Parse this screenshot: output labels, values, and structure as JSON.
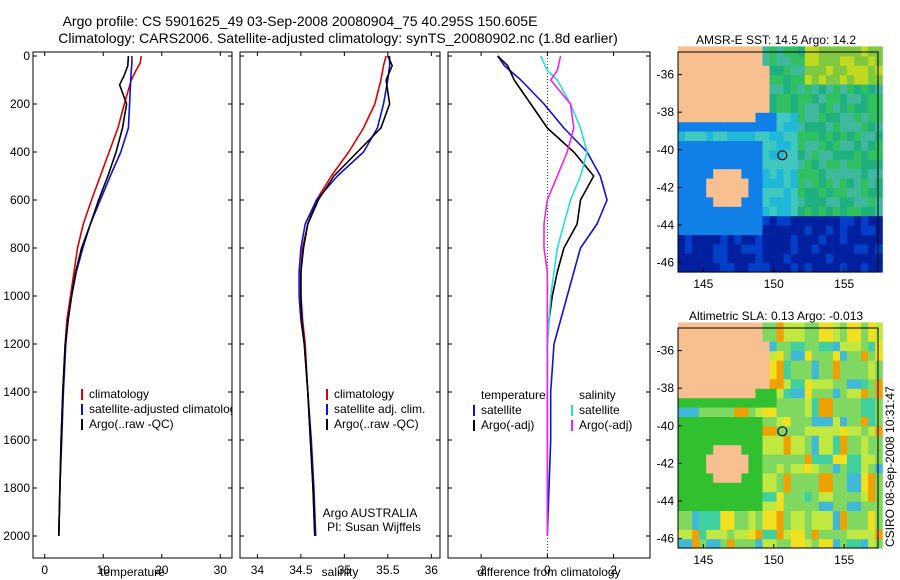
{
  "header": {
    "line1": "Argo profile: CS 5901625_49 03-Sep-2008 20080904_75 40.295S 150.605E",
    "line2": "Climatology: CARS2006. Satellite-adjusted climatology: synTS_20080902.nc (1.8d earlier)"
  },
  "credit": "CSIRO 08-Sep-2008 10:31:47",
  "colors": {
    "red": "#dd0000",
    "blue": "#1010dd",
    "black": "#000000",
    "cyan": "#22e0e0",
    "magenta": "#ee22ee",
    "land": "#f8c090"
  },
  "chart_data": [
    {
      "type": "line",
      "xlabel": "temperature",
      "ylabel": "",
      "xlim": [
        -2,
        32
      ],
      "ylim": [
        2000,
        0
      ],
      "y_inverted": true,
      "xticks": [
        0,
        10,
        20,
        30
      ],
      "yticks": [
        0,
        200,
        400,
        600,
        800,
        1000,
        1200,
        1400,
        1600,
        1800,
        2000
      ],
      "legend": [
        "climatology",
        "satellite-adjusted climatology",
        "Argo(..raw -QC)"
      ],
      "legend_position": "lower-left",
      "series": [
        {
          "name": "climatology",
          "color": "red",
          "x": [
            16.5,
            16.3,
            15.6,
            14.8,
            13.6,
            12.5,
            11.0,
            9.5,
            8.0,
            6.6,
            5.6,
            5.0,
            4.4,
            3.8,
            3.5,
            3.1,
            2.8,
            2.6,
            2.4
          ],
          "y": [
            0,
            30,
            60,
            100,
            200,
            300,
            400,
            500,
            600,
            700,
            800,
            900,
            1000,
            1100,
            1200,
            1400,
            1600,
            1800,
            2000
          ]
        },
        {
          "name": "satellite-adjusted climatology",
          "color": "blue",
          "x": [
            14.9,
            14.9,
            14.8,
            14.7,
            14.5,
            14.3,
            13.0,
            11.2,
            9.5,
            7.8,
            6.5,
            5.4,
            4.6,
            4.0,
            3.6,
            3.2,
            2.9,
            2.6,
            2.4
          ],
          "y": [
            0,
            30,
            60,
            100,
            200,
            300,
            400,
            500,
            600,
            700,
            800,
            900,
            1000,
            1100,
            1200,
            1400,
            1600,
            1800,
            2000
          ]
        },
        {
          "name": "Argo(..raw -QC)",
          "color": "black",
          "x": [
            14.3,
            14.2,
            13.6,
            12.8,
            14.0,
            13.3,
            12.2,
            10.8,
            9.2,
            7.8,
            6.3,
            5.3,
            4.6,
            4.0,
            3.5,
            3.1,
            2.8,
            2.6,
            2.4
          ],
          "y": [
            0,
            40,
            80,
            120,
            200,
            300,
            400,
            500,
            600,
            700,
            800,
            900,
            1000,
            1100,
            1200,
            1400,
            1600,
            1800,
            2000
          ]
        }
      ]
    },
    {
      "type": "line",
      "xlabel": "salinity",
      "ylabel": "",
      "xlim": [
        33.8,
        36.1
      ],
      "ylim": [
        2000,
        0
      ],
      "y_inverted": true,
      "xticks": [
        34,
        34.5,
        35,
        35.5,
        36
      ],
      "yticks": [
        0,
        200,
        400,
        600,
        800,
        1000,
        1200,
        1400,
        1600,
        1800,
        2000
      ],
      "legend": [
        "climatology",
        "satellite adj. clim.",
        "Argo(..raw -QC)"
      ],
      "legend_position": "lower-right",
      "annotation": [
        "Argo AUSTRALIA",
        "PI: Susan Wijffels"
      ],
      "series": [
        {
          "name": "climatology",
          "color": "red",
          "x": [
            35.48,
            35.45,
            35.42,
            35.35,
            35.22,
            35.05,
            34.85,
            34.68,
            34.58,
            34.52,
            34.5,
            34.5,
            34.52,
            34.55,
            34.58,
            34.61,
            34.64,
            34.66
          ],
          "y": [
            0,
            40,
            100,
            200,
            300,
            400,
            500,
            600,
            700,
            800,
            900,
            1000,
            1100,
            1200,
            1400,
            1600,
            1800,
            2000
          ]
        },
        {
          "name": "satellite adj. clim.",
          "color": "blue",
          "x": [
            35.52,
            35.52,
            35.5,
            35.45,
            35.38,
            35.22,
            34.92,
            34.68,
            34.55,
            34.5,
            34.48,
            34.48,
            34.5,
            34.54,
            34.58,
            34.62,
            34.65,
            34.67
          ],
          "y": [
            0,
            40,
            100,
            200,
            300,
            400,
            500,
            600,
            700,
            800,
            900,
            1000,
            1100,
            1200,
            1400,
            1600,
            1800,
            2000
          ]
        },
        {
          "name": "Argo(..raw -QC)",
          "color": "black",
          "x": [
            35.5,
            35.55,
            35.48,
            35.52,
            35.42,
            35.15,
            34.88,
            34.7,
            34.58,
            34.53,
            34.5,
            34.5,
            34.51,
            34.54,
            34.58,
            34.61,
            34.64,
            34.66
          ],
          "y": [
            0,
            40,
            100,
            200,
            300,
            400,
            500,
            600,
            700,
            800,
            900,
            1000,
            1100,
            1200,
            1400,
            1600,
            1800,
            2000
          ]
        }
      ]
    },
    {
      "type": "line",
      "xlabel": "difference from climatology",
      "ylabel": "",
      "xlim": [
        -3,
        3.1
      ],
      "ylim": [
        2000,
        0
      ],
      "y_inverted": true,
      "xticks": [
        -2,
        0,
        2
      ],
      "yticks": [
        0,
        200,
        400,
        600,
        800,
        1000,
        1200,
        1400,
        1600,
        1800,
        2000
      ],
      "zero_line": "dotted",
      "legend_groups": [
        {
          "heading": "temperature",
          "entries": [
            "satellite",
            "Argo(-adj)"
          ]
        },
        {
          "heading": "salinity",
          "entries": [
            "satellite",
            "Argo(-adj)"
          ]
        }
      ],
      "legend_position": "lower-center",
      "series": [
        {
          "name": "temperature satellite",
          "color": "blue",
          "x": [
            -1.5,
            -1.3,
            -0.8,
            -0.1,
            0.5,
            1.2,
            1.6,
            1.8,
            1.5,
            1.0,
            0.8,
            0.6,
            0.4,
            0.2,
            0.1,
            0.1,
            0.05,
            0.0
          ],
          "y": [
            0,
            40,
            100,
            200,
            300,
            400,
            500,
            600,
            700,
            800,
            900,
            1000,
            1100,
            1200,
            1400,
            1600,
            1800,
            2000
          ]
        },
        {
          "name": "temperature Argo(-adj)",
          "color": "black",
          "x": [
            -1.5,
            -1.2,
            -1.0,
            -0.5,
            0.0,
            0.8,
            1.4,
            1.0,
            0.9,
            0.5,
            0.3,
            0.15,
            0.05,
            0.0,
            0.0,
            0.0,
            0.0,
            0.0
          ],
          "y": [
            0,
            40,
            100,
            200,
            300,
            400,
            500,
            600,
            700,
            800,
            900,
            1000,
            1100,
            1200,
            1400,
            1600,
            1800,
            2000
          ]
        },
        {
          "name": "salinity satellite",
          "color": "cyan",
          "x": [
            -0.2,
            0.0,
            0.3,
            0.7,
            1.0,
            1.2,
            1.0,
            0.7,
            0.5,
            0.3,
            0.2,
            0.1,
            0.0,
            0.0,
            0.0,
            0.0,
            0.0
          ],
          "y": [
            0,
            60,
            100,
            200,
            300,
            400,
            500,
            600,
            700,
            800,
            900,
            1000,
            1200,
            1400,
            1600,
            1800,
            2000
          ]
        },
        {
          "name": "salinity Argo(-adj)",
          "color": "magenta",
          "x": [
            0.4,
            0.3,
            0.1,
            0.7,
            0.8,
            0.6,
            0.3,
            0.0,
            -0.1,
            -0.1,
            0.0,
            0.0,
            0.0,
            0.0,
            0.0,
            0.0,
            0.0
          ],
          "y": [
            0,
            60,
            100,
            200,
            300,
            400,
            500,
            600,
            700,
            800,
            900,
            1000,
            1200,
            1400,
            1600,
            1800,
            2000
          ]
        }
      ]
    },
    {
      "type": "heatmap",
      "title": "AMSR-E SST: 14.5 Argo: 14.2",
      "xticks": [
        145,
        150,
        155
      ],
      "yticks": [
        -36,
        -38,
        -40,
        -42,
        -44,
        -46
      ],
      "xlim": [
        143.2,
        157.4
      ],
      "ylim": [
        -46.5,
        -34.8
      ],
      "marker": {
        "lon": 150.605,
        "lat": -40.295
      }
    },
    {
      "type": "heatmap",
      "title": "Altimetric SLA: 0.13 Argo: -0.013",
      "xticks": [
        145,
        150,
        155
      ],
      "yticks": [
        -36,
        -38,
        -40,
        -42,
        -44,
        -46
      ],
      "xlim": [
        143.2,
        157.4
      ],
      "ylim": [
        -46.5,
        -34.8
      ],
      "marker": {
        "lon": 150.605,
        "lat": -40.295
      }
    }
  ]
}
